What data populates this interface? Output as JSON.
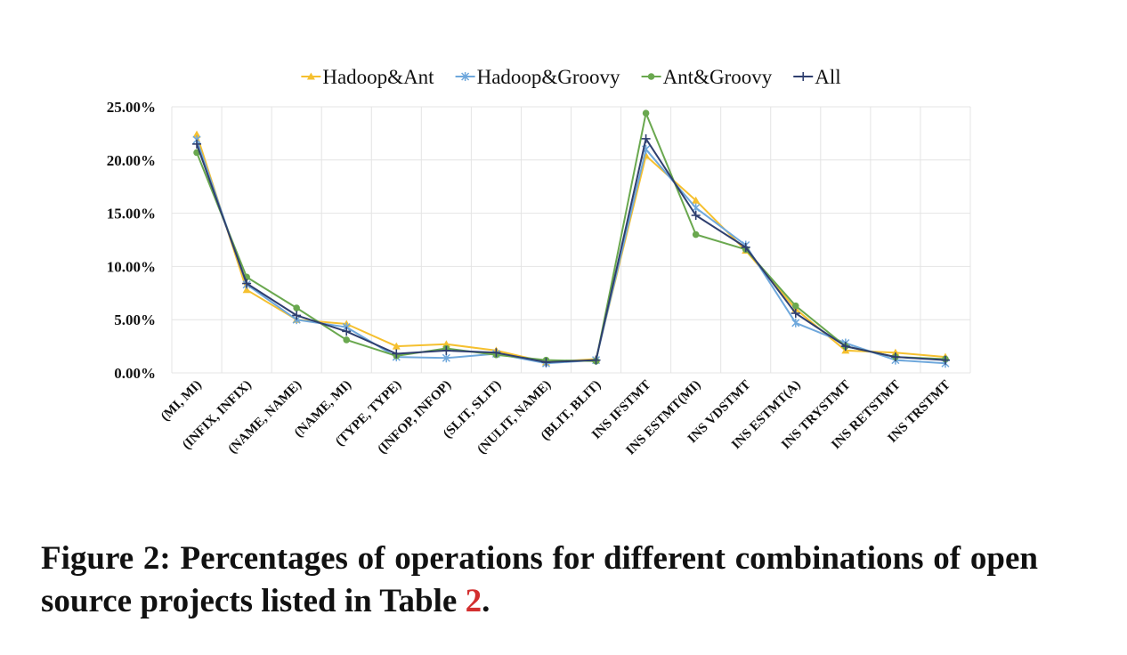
{
  "chart_data": {
    "type": "line",
    "categories": [
      "(MI, MI)",
      "(INFIX, INFIX)",
      "(NAME, NAME)",
      "(NAME, MI)",
      "(TYPE, TYPE)",
      "(INFOP, INFOP)",
      "(SLIT, SLIT)",
      "(NULIT, NAME)",
      "(BLIT, BLIT)",
      "INS IFSTMT",
      "INS ESTMT(MI)",
      "INS VDSTMT",
      "INS ESTMT(A)",
      "INS TRYSTMT",
      "INS RETSTMT",
      "INS TRSTMT"
    ],
    "series": [
      {
        "name": "Hadoop&Ant",
        "color": "#f5c02f",
        "marker": "triangle",
        "values": [
          22.4,
          7.8,
          5.0,
          4.6,
          2.5,
          2.7,
          2.1,
          1.0,
          1.3,
          20.4,
          16.2,
          11.5,
          6.0,
          2.1,
          1.9,
          1.5
        ]
      },
      {
        "name": "Hadoop&Groovy",
        "color": "#6fa8dc",
        "marker": "star",
        "values": [
          21.9,
          8.3,
          5.0,
          4.3,
          1.5,
          1.4,
          1.8,
          0.9,
          1.2,
          21.0,
          15.5,
          12.0,
          4.7,
          2.8,
          1.2,
          0.9
        ]
      },
      {
        "name": "Ant&Groovy",
        "color": "#6aa84f",
        "marker": "circle",
        "values": [
          20.7,
          9.0,
          6.1,
          3.1,
          1.6,
          2.3,
          1.7,
          1.2,
          1.1,
          24.4,
          13.0,
          11.6,
          6.3,
          2.5,
          1.5,
          1.3
        ]
      },
      {
        "name": "All",
        "color": "#2f3f6f",
        "marker": "plus",
        "values": [
          21.5,
          8.4,
          5.4,
          3.9,
          1.8,
          2.1,
          1.9,
          1.0,
          1.2,
          22.0,
          14.8,
          11.8,
          5.6,
          2.5,
          1.5,
          1.2
        ]
      }
    ],
    "yticks": [
      "0.00%",
      "5.00%",
      "10.00%",
      "15.00%",
      "20.00%",
      "25.00%"
    ],
    "ylim": [
      0,
      25
    ],
    "grid": true,
    "legend": "top"
  },
  "caption": {
    "text": "Figure 2: Percentages of operations for different combinations of open source projects listed in Table ",
    "ref": "2",
    "end": "."
  }
}
